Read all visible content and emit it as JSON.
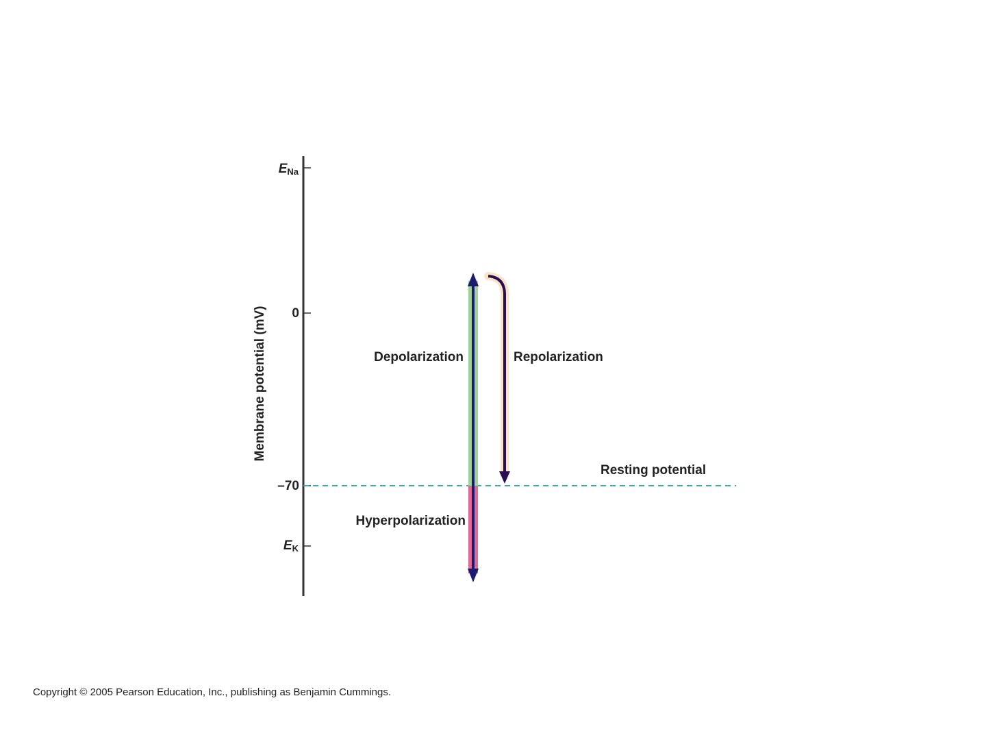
{
  "axis": {
    "label": "Membrane potential (mV)",
    "ticks": [
      {
        "main": "E",
        "sub": "Na"
      },
      {
        "main": "0"
      },
      {
        "main": "–70"
      },
      {
        "main": "E",
        "sub": "K"
      }
    ]
  },
  "labels": {
    "depolarization": "Depolarization",
    "repolarization": "Repolarization",
    "resting": "Resting potential",
    "hyperpolarization": "Hyperpolarization"
  },
  "footer": {
    "copyright": "Copyright © 2005 Pearson Education, Inc., publishing as Benjamin Cummings."
  }
}
